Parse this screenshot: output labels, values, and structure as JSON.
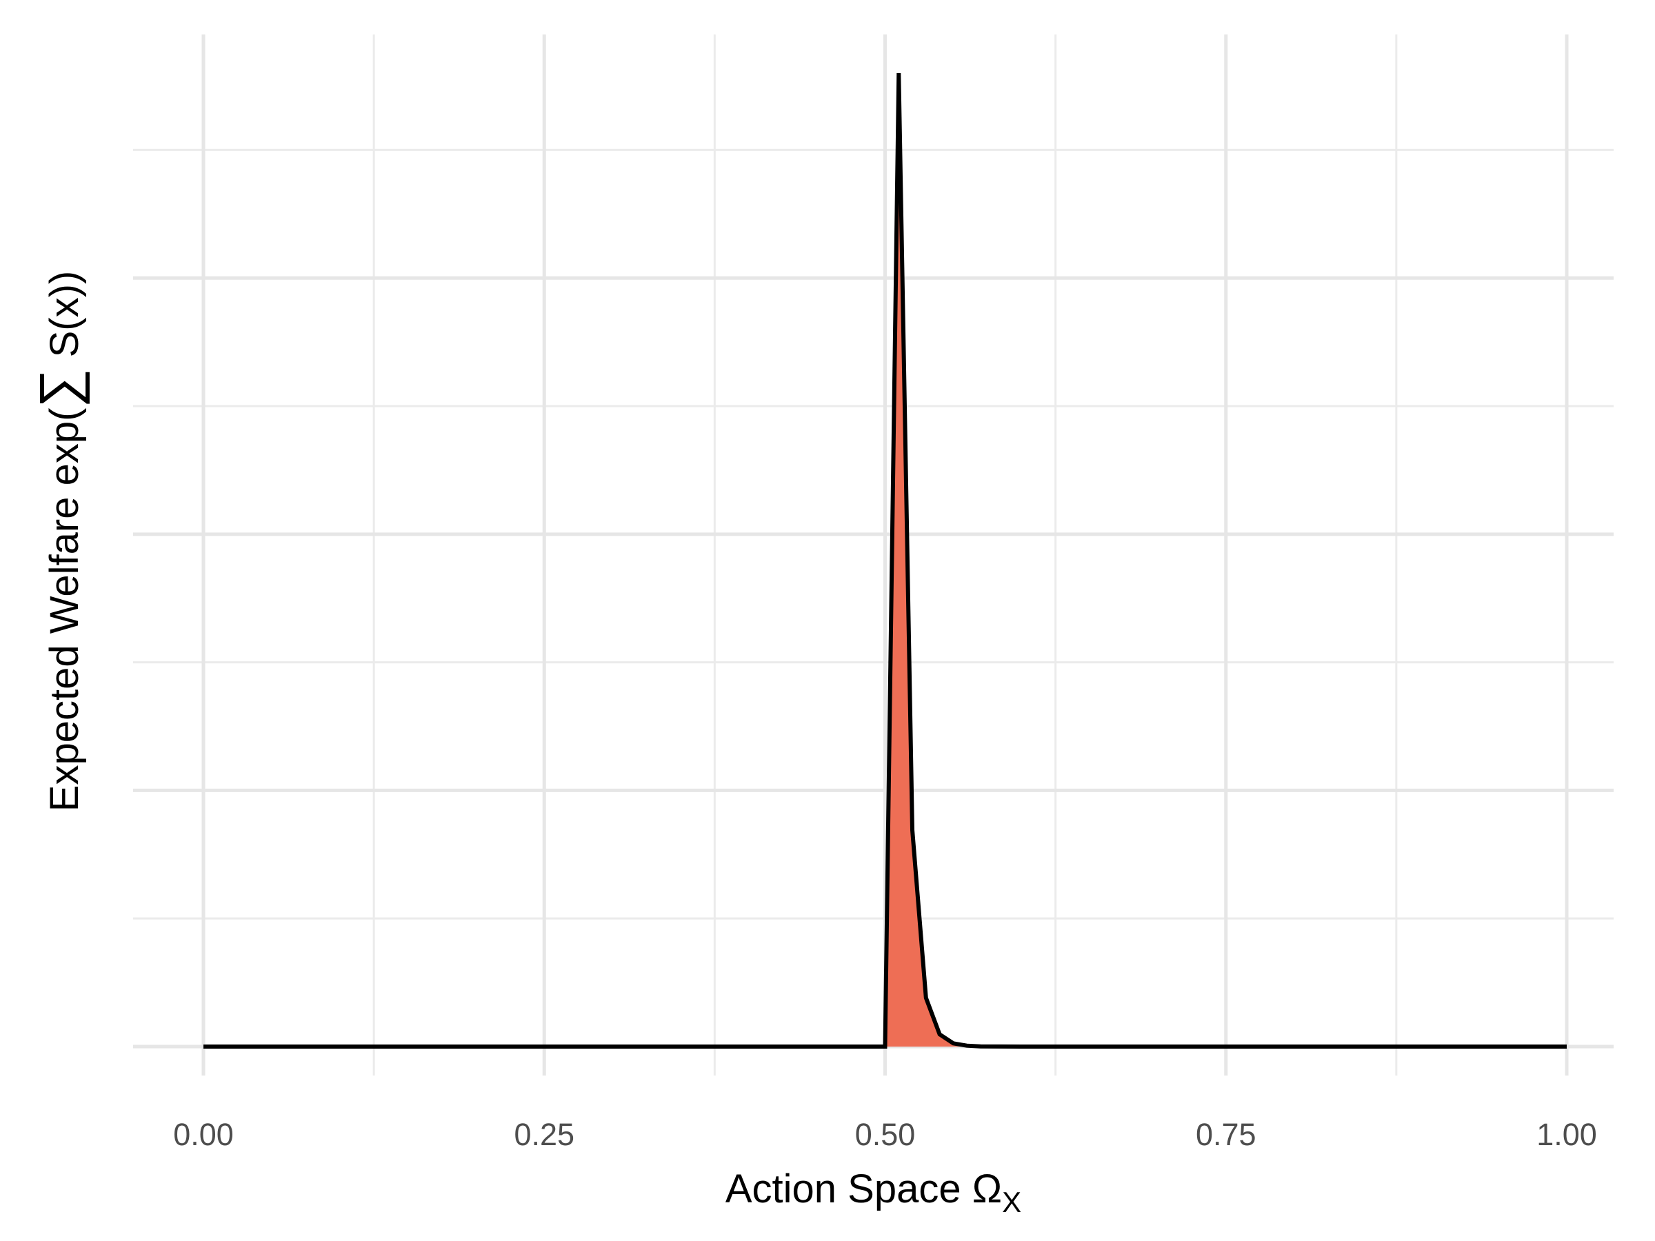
{
  "chart_data": {
    "type": "area",
    "title": "",
    "xlabel": "Action Space Ω",
    "xlabel_subscript": "X",
    "ylabel_prefix": "Expected Welfare exp(",
    "ylabel_sum_symbol": "∑",
    "ylabel_suffix": " S(x))",
    "xlim": [
      -0.05,
      1.05
    ],
    "ylim": [
      -0.03,
      1.05
    ],
    "x_ticks": [
      0.0,
      0.25,
      0.5,
      0.75,
      1.0
    ],
    "x_tick_labels": [
      "0.00",
      "0.25",
      "0.50",
      "0.75",
      "1.00"
    ],
    "x_minor_ticks": [
      0.125,
      0.375,
      0.625,
      0.875
    ],
    "y_ticks": [
      0.0,
      0.2632,
      0.5263,
      0.7895
    ],
    "y_minor_ticks": [
      0.1316,
      0.3947,
      0.6579,
      0.9211
    ],
    "y_tick_labels_shown": false,
    "grid": true,
    "legend": "none",
    "series": [
      {
        "fill": "#ee6e55",
        "line": "#000000",
        "x": [
          0.0,
          0.1,
          0.2,
          0.3,
          0.4,
          0.49,
          0.5,
          0.51,
          0.52,
          0.53,
          0.54,
          0.55,
          0.56,
          0.57,
          0.6,
          0.7,
          0.8,
          0.9,
          1.0
        ],
        "y": [
          0.0,
          0.0,
          0.0,
          0.0,
          0.0,
          0.0,
          0.0,
          1.0,
          0.2225,
          0.0501,
          0.0126,
          0.0033,
          0.0009,
          0.0002,
          0.0,
          0.0,
          0.0,
          0.0,
          0.0
        ]
      }
    ]
  }
}
